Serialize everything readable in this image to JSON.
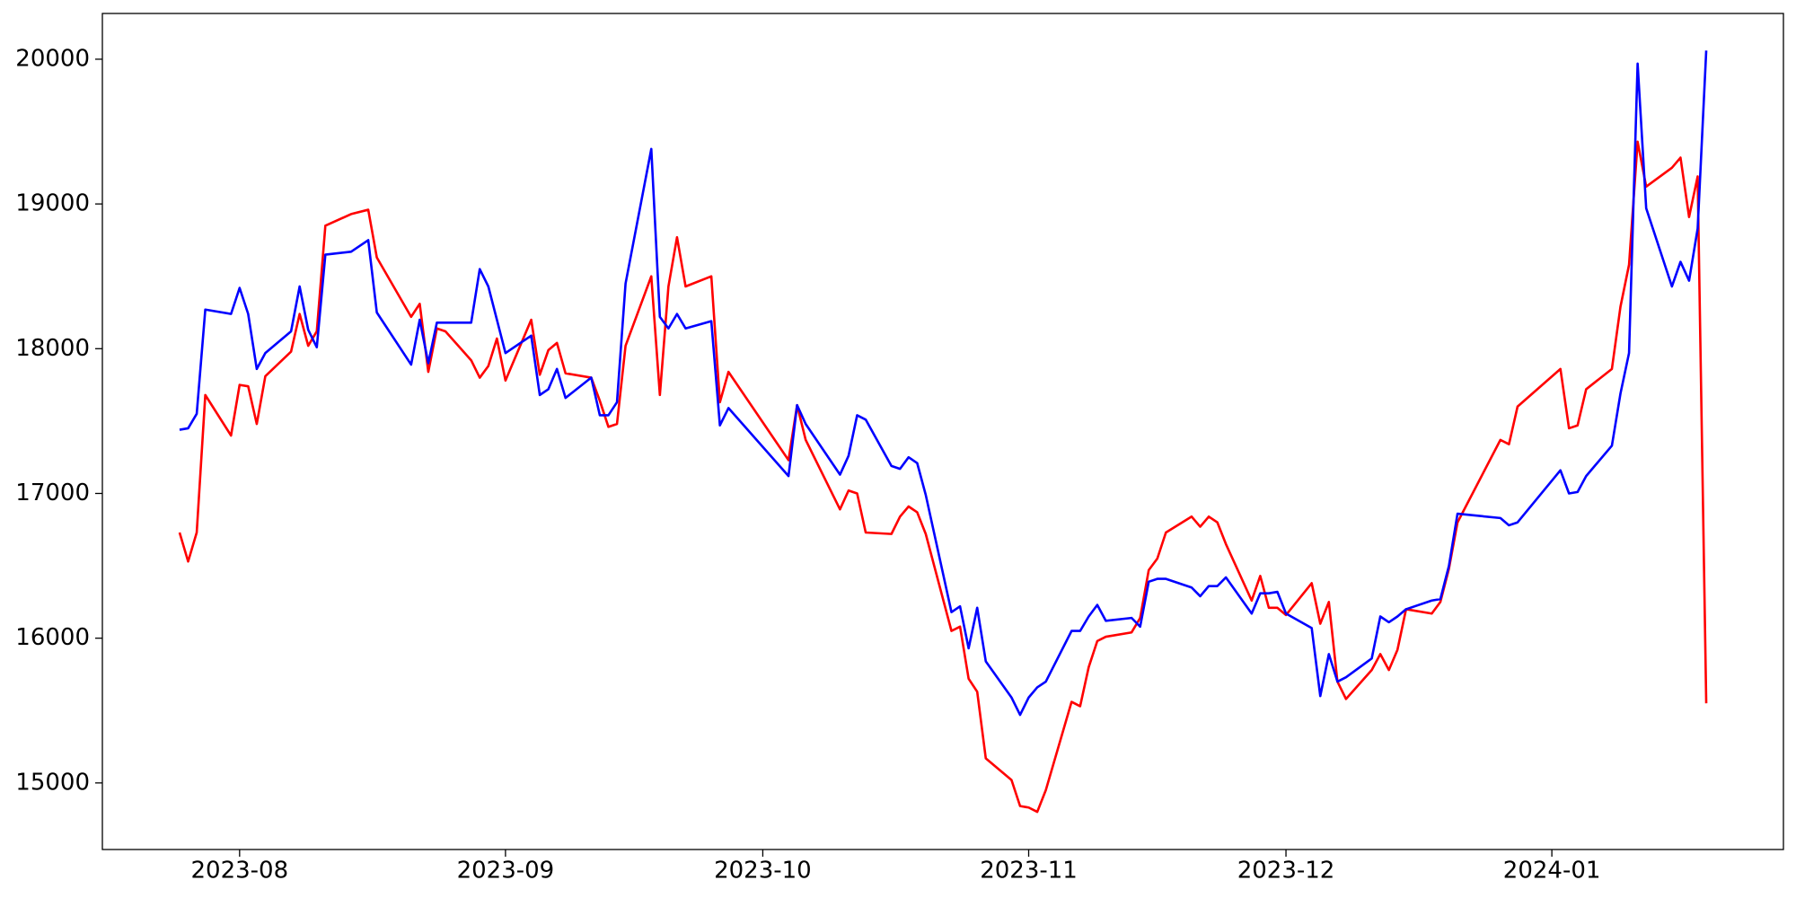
{
  "chart_data": {
    "type": "line",
    "x": [
      19563,
      19564,
      19565,
      19566,
      19569,
      19570,
      19571,
      19572,
      19573,
      19576,
      19577,
      19578,
      19579,
      19580,
      19583,
      19585,
      19586,
      19590,
      19591,
      19592,
      19593,
      19594,
      19597,
      19598,
      19599,
      19600,
      19601,
      19604,
      19605,
      19606,
      19607,
      19608,
      19611,
      19612,
      19613,
      19614,
      19615,
      19618,
      19619,
      19620,
      19621,
      19622,
      19625,
      19626,
      19627,
      19634,
      19635,
      19636,
      19640,
      19641,
      19642,
      19643,
      19646,
      19647,
      19648,
      19649,
      19650,
      19653,
      19654,
      19655,
      19656,
      19657,
      19660,
      19661,
      19662,
      19663,
      19664,
      19667,
      19668,
      19669,
      19670,
      19671,
      19674,
      19675,
      19676,
      19677,
      19678,
      19681,
      19682,
      19683,
      19684,
      19685,
      19688,
      19689,
      19690,
      19691,
      19692,
      19695,
      19696,
      19697,
      19698,
      19699,
      19702,
      19703,
      19704,
      19705,
      19706,
      19709,
      19710,
      19711,
      19712,
      19717,
      19718,
      19719,
      19724,
      19725,
      19726,
      19727,
      19730,
      19731,
      19732,
      19733,
      19734,
      19737,
      19738,
      19739,
      19740,
      19741
    ],
    "series": [
      {
        "color": "#ff0000",
        "values": [
          16730,
          16530,
          16730,
          17680,
          17400,
          17750,
          17740,
          17480,
          17810,
          17980,
          18240,
          18020,
          18120,
          18850,
          18930,
          18960,
          18630,
          18220,
          18310,
          17840,
          18140,
          18120,
          17920,
          17800,
          17880,
          18070,
          17780,
          18200,
          17820,
          17990,
          18040,
          17830,
          17800,
          17640,
          17460,
          17480,
          18020,
          18500,
          17680,
          18430,
          18770,
          18430,
          18500,
          17630,
          17840,
          17230,
          17610,
          17370,
          16890,
          17020,
          17000,
          16730,
          16720,
          16840,
          16910,
          16870,
          16720,
          16050,
          16080,
          15720,
          15630,
          15170,
          15020,
          14840,
          14830,
          14800,
          14950,
          15560,
          15530,
          15800,
          15980,
          16010,
          16040,
          16140,
          16470,
          16550,
          16730,
          16840,
          16770,
          16840,
          16800,
          16650,
          16260,
          16430,
          16210,
          16210,
          16160,
          16380,
          16100,
          16250,
          15700,
          15580,
          15780,
          15890,
          15780,
          15920,
          16200,
          16170,
          16250,
          16480,
          16800,
          17370,
          17340,
          17600,
          17860,
          17450,
          17470,
          17720,
          17860,
          18290,
          18580,
          19430,
          19120,
          19250,
          19320,
          18910,
          19190,
          15550
        ]
      },
      {
        "color": "#0000ff",
        "values": [
          17440,
          17450,
          17550,
          18270,
          18240,
          18420,
          18240,
          17860,
          17970,
          18120,
          18430,
          18130,
          18010,
          18650,
          18670,
          18750,
          18250,
          17890,
          18200,
          17900,
          18180,
          18180,
          18180,
          18550,
          18430,
          18200,
          17970,
          18090,
          17680,
          17720,
          17860,
          17660,
          17800,
          17540,
          17540,
          17630,
          18450,
          19380,
          18220,
          18140,
          18240,
          18140,
          18190,
          17470,
          17590,
          17120,
          17610,
          17480,
          17130,
          17260,
          17540,
          17510,
          17190,
          17170,
          17250,
          17210,
          16990,
          16180,
          16220,
          15930,
          16210,
          15840,
          15590,
          15470,
          15590,
          15660,
          15700,
          16050,
          16050,
          16150,
          16230,
          16120,
          16140,
          16080,
          16390,
          16410,
          16410,
          16350,
          16290,
          16360,
          16360,
          16420,
          16170,
          16310,
          16310,
          16320,
          16170,
          16070,
          15600,
          15890,
          15700,
          15730,
          15860,
          16150,
          16110,
          16150,
          16200,
          16260,
          16270,
          16500,
          16860,
          16830,
          16780,
          16800,
          17160,
          17000,
          17010,
          17120,
          17330,
          17690,
          17970,
          19970,
          18970,
          18430,
          18600,
          18470,
          18830,
          20060
        ]
      }
    ],
    "xlim": [
      19554,
      19750
    ],
    "xticks": [
      {
        "value": 19570,
        "label": "2023-08"
      },
      {
        "value": 19601,
        "label": "2023-09"
      },
      {
        "value": 19631,
        "label": "2023-10"
      },
      {
        "value": 19662,
        "label": "2023-11"
      },
      {
        "value": 19692,
        "label": "2023-12"
      },
      {
        "value": 19723,
        "label": "2024-01"
      }
    ],
    "ylim": [
      14540,
      20316
    ],
    "yticks": [
      15000,
      16000,
      17000,
      18000,
      19000,
      20000
    ],
    "grid": false
  }
}
